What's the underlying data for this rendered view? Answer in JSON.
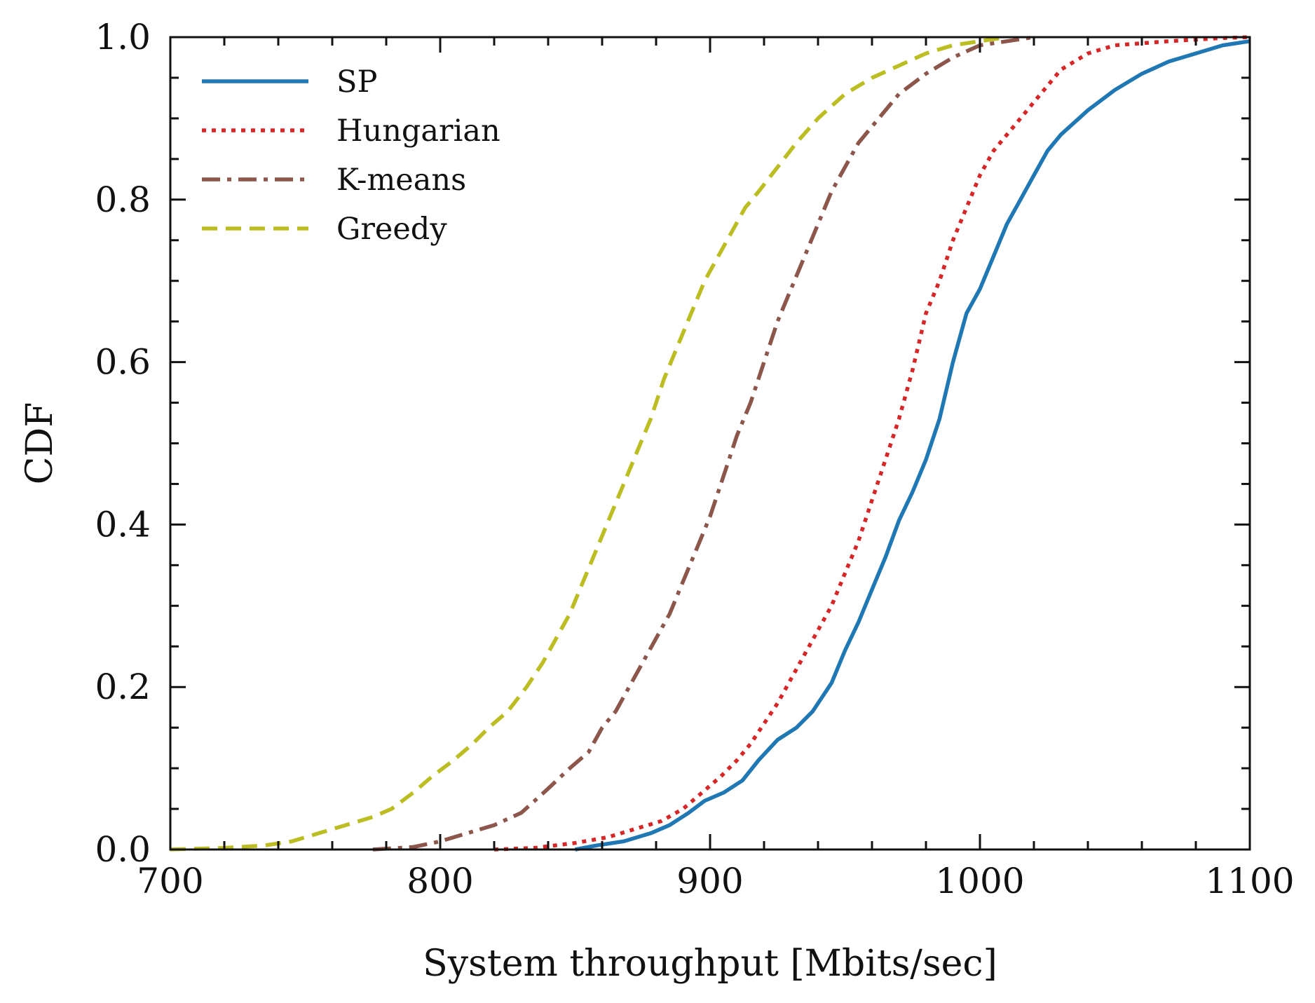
{
  "chart_data": {
    "type": "line",
    "title": "",
    "xlabel": "System throughput [Mbits/sec]",
    "ylabel": "CDF",
    "xlim": [
      700,
      1100
    ],
    "ylim": [
      0.0,
      1.0
    ],
    "xticks": [
      "700",
      "800",
      "900",
      "1000",
      "1100"
    ],
    "yticks": [
      "0.0",
      "0.2",
      "0.4",
      "0.6",
      "0.8",
      "1.0"
    ],
    "grid": false,
    "legend_position": "top-left",
    "series": [
      {
        "name": "SP",
        "color": "#1f77b4",
        "style": "solid",
        "points": [
          [
            850,
            0.0
          ],
          [
            858,
            0.005
          ],
          [
            868,
            0.01
          ],
          [
            878,
            0.02
          ],
          [
            885,
            0.03
          ],
          [
            892,
            0.045
          ],
          [
            898,
            0.06
          ],
          [
            905,
            0.07
          ],
          [
            912,
            0.085
          ],
          [
            918,
            0.11
          ],
          [
            925,
            0.135
          ],
          [
            932,
            0.15
          ],
          [
            938,
            0.17
          ],
          [
            945,
            0.205
          ],
          [
            950,
            0.245
          ],
          [
            955,
            0.28
          ],
          [
            960,
            0.32
          ],
          [
            965,
            0.36
          ],
          [
            970,
            0.405
          ],
          [
            975,
            0.44
          ],
          [
            980,
            0.48
          ],
          [
            985,
            0.53
          ],
          [
            990,
            0.6
          ],
          [
            995,
            0.66
          ],
          [
            1000,
            0.69
          ],
          [
            1005,
            0.73
          ],
          [
            1010,
            0.77
          ],
          [
            1015,
            0.8
          ],
          [
            1020,
            0.83
          ],
          [
            1025,
            0.86
          ],
          [
            1030,
            0.88
          ],
          [
            1040,
            0.91
          ],
          [
            1050,
            0.935
          ],
          [
            1060,
            0.955
          ],
          [
            1070,
            0.97
          ],
          [
            1080,
            0.98
          ],
          [
            1090,
            0.99
          ],
          [
            1100,
            0.995
          ]
        ]
      },
      {
        "name": "Hungarian",
        "color": "#d62728",
        "style": "dotted",
        "points": [
          [
            820,
            0.0
          ],
          [
            835,
            0.002
          ],
          [
            850,
            0.008
          ],
          [
            862,
            0.015
          ],
          [
            872,
            0.025
          ],
          [
            882,
            0.035
          ],
          [
            890,
            0.05
          ],
          [
            897,
            0.07
          ],
          [
            904,
            0.09
          ],
          [
            910,
            0.11
          ],
          [
            915,
            0.13
          ],
          [
            920,
            0.155
          ],
          [
            925,
            0.18
          ],
          [
            930,
            0.21
          ],
          [
            935,
            0.24
          ],
          [
            940,
            0.27
          ],
          [
            945,
            0.3
          ],
          [
            950,
            0.34
          ],
          [
            955,
            0.38
          ],
          [
            960,
            0.43
          ],
          [
            965,
            0.48
          ],
          [
            970,
            0.53
          ],
          [
            975,
            0.59
          ],
          [
            980,
            0.66
          ],
          [
            985,
            0.7
          ],
          [
            990,
            0.75
          ],
          [
            995,
            0.79
          ],
          [
            1000,
            0.83
          ],
          [
            1005,
            0.86
          ],
          [
            1010,
            0.88
          ],
          [
            1015,
            0.9
          ],
          [
            1020,
            0.92
          ],
          [
            1025,
            0.94
          ],
          [
            1030,
            0.96
          ],
          [
            1040,
            0.98
          ],
          [
            1050,
            0.99
          ],
          [
            1070,
            0.995
          ],
          [
            1090,
            0.999
          ],
          [
            1100,
            1.0
          ]
        ]
      },
      {
        "name": "K-means",
        "color": "#8c564b",
        "style": "dashdot",
        "points": [
          [
            775,
            0.0
          ],
          [
            790,
            0.003
          ],
          [
            800,
            0.01
          ],
          [
            810,
            0.02
          ],
          [
            820,
            0.03
          ],
          [
            830,
            0.045
          ],
          [
            835,
            0.06
          ],
          [
            840,
            0.075
          ],
          [
            848,
            0.1
          ],
          [
            855,
            0.12
          ],
          [
            860,
            0.15
          ],
          [
            865,
            0.17
          ],
          [
            870,
            0.2
          ],
          [
            875,
            0.23
          ],
          [
            880,
            0.26
          ],
          [
            885,
            0.29
          ],
          [
            890,
            0.33
          ],
          [
            895,
            0.37
          ],
          [
            900,
            0.41
          ],
          [
            905,
            0.46
          ],
          [
            910,
            0.51
          ],
          [
            915,
            0.55
          ],
          [
            920,
            0.6
          ],
          [
            925,
            0.65
          ],
          [
            930,
            0.69
          ],
          [
            935,
            0.73
          ],
          [
            940,
            0.77
          ],
          [
            945,
            0.81
          ],
          [
            950,
            0.84
          ],
          [
            955,
            0.87
          ],
          [
            960,
            0.89
          ],
          [
            965,
            0.91
          ],
          [
            970,
            0.93
          ],
          [
            980,
            0.955
          ],
          [
            990,
            0.975
          ],
          [
            1000,
            0.99
          ],
          [
            1010,
            0.995
          ],
          [
            1020,
            1.0
          ]
        ]
      },
      {
        "name": "Greedy",
        "color": "#bcbd22",
        "style": "dashed",
        "points": [
          [
            700,
            0.0
          ],
          [
            720,
            0.002
          ],
          [
            735,
            0.005
          ],
          [
            745,
            0.01
          ],
          [
            755,
            0.02
          ],
          [
            765,
            0.03
          ],
          [
            775,
            0.04
          ],
          [
            782,
            0.05
          ],
          [
            790,
            0.07
          ],
          [
            797,
            0.09
          ],
          [
            805,
            0.11
          ],
          [
            812,
            0.13
          ],
          [
            818,
            0.15
          ],
          [
            825,
            0.17
          ],
          [
            832,
            0.2
          ],
          [
            838,
            0.23
          ],
          [
            843,
            0.26
          ],
          [
            848,
            0.29
          ],
          [
            853,
            0.33
          ],
          [
            858,
            0.37
          ],
          [
            863,
            0.41
          ],
          [
            868,
            0.45
          ],
          [
            873,
            0.49
          ],
          [
            878,
            0.53
          ],
          [
            883,
            0.58
          ],
          [
            888,
            0.62
          ],
          [
            893,
            0.66
          ],
          [
            898,
            0.7
          ],
          [
            903,
            0.73
          ],
          [
            908,
            0.76
          ],
          [
            913,
            0.79
          ],
          [
            918,
            0.81
          ],
          [
            925,
            0.84
          ],
          [
            932,
            0.87
          ],
          [
            940,
            0.9
          ],
          [
            950,
            0.93
          ],
          [
            960,
            0.95
          ],
          [
            970,
            0.965
          ],
          [
            980,
            0.98
          ],
          [
            990,
            0.99
          ],
          [
            1000,
            0.995
          ],
          [
            1010,
            1.0
          ]
        ]
      }
    ]
  }
}
